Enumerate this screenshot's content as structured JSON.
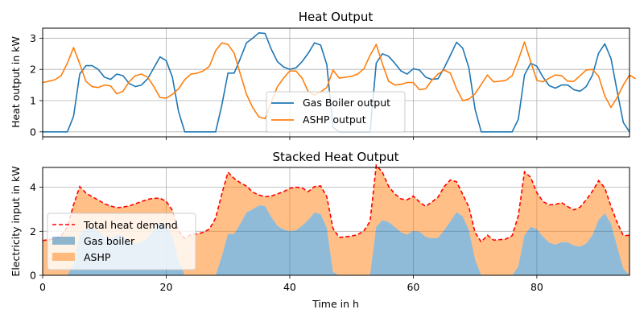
{
  "chart_data": [
    {
      "type": "line",
      "title": "Heat Output",
      "xlabel": "",
      "ylabel": "Heat output in kW",
      "xlim": [
        0,
        95
      ],
      "ylim": [
        -0.16,
        3.32
      ],
      "yticks": [
        0,
        1,
        2,
        3
      ],
      "xticks": [
        0,
        20,
        40,
        60,
        80
      ],
      "show_x_tick_labels": false,
      "grid": true,
      "legend_position": "lower-center",
      "series": [
        {
          "name": "Gas Boiler output",
          "color": "#1f77b4",
          "values": [
            0,
            0,
            0,
            0,
            0,
            0.5,
            1.85,
            2.12,
            2.12,
            2.0,
            1.75,
            1.68,
            1.85,
            1.8,
            1.55,
            1.45,
            1.5,
            1.7,
            2.05,
            2.4,
            2.28,
            1.75,
            0.65,
            0,
            0,
            0,
            0,
            0,
            0,
            0.85,
            1.88,
            1.88,
            2.35,
            2.85,
            3.0,
            3.17,
            3.15,
            2.65,
            2.25,
            2.08,
            2.0,
            2.05,
            2.25,
            2.52,
            2.85,
            2.78,
            2.15,
            0.15,
            0,
            0,
            0,
            0,
            0,
            0,
            2.2,
            2.5,
            2.42,
            2.2,
            1.95,
            1.85,
            2.02,
            1.98,
            1.75,
            1.68,
            1.7,
            2.05,
            2.45,
            2.87,
            2.68,
            2.05,
            0.72,
            0,
            0,
            0,
            0,
            0,
            0,
            0.4,
            1.82,
            2.2,
            2.1,
            1.75,
            1.48,
            1.4,
            1.5,
            1.5,
            1.35,
            1.3,
            1.45,
            1.82,
            2.52,
            2.82,
            2.35,
            1.3,
            0.3,
            0
          ]
        },
        {
          "name": "ASHP output",
          "color": "#ff7f0e",
          "values": [
            1.58,
            1.62,
            1.67,
            1.8,
            2.2,
            2.7,
            2.18,
            1.62,
            1.45,
            1.42,
            1.5,
            1.47,
            1.22,
            1.3,
            1.6,
            1.8,
            1.85,
            1.75,
            1.45,
            1.1,
            1.08,
            1.2,
            1.38,
            1.67,
            1.85,
            1.88,
            1.95,
            2.1,
            2.6,
            2.85,
            2.8,
            2.52,
            1.85,
            1.2,
            0.78,
            0.48,
            0.42,
            0.95,
            1.45,
            1.72,
            1.95,
            1.95,
            1.72,
            1.28,
            1.18,
            1.28,
            1.42,
            1.98,
            1.72,
            1.75,
            1.78,
            1.85,
            2.02,
            2.45,
            2.8,
            2.18,
            1.62,
            1.5,
            1.52,
            1.58,
            1.58,
            1.35,
            1.38,
            1.65,
            1.85,
            1.98,
            1.88,
            1.38,
            1.0,
            1.05,
            1.22,
            1.52,
            1.82,
            1.6,
            1.62,
            1.65,
            1.8,
            2.3,
            2.88,
            2.25,
            1.65,
            1.6,
            1.72,
            1.82,
            1.8,
            1.62,
            1.62,
            1.8,
            1.98,
            2.0,
            1.78,
            1.15,
            0.78,
            1.1,
            1.5,
            1.82,
            1.7
          ]
        }
      ]
    },
    {
      "type": "area",
      "title": "Stacked Heat Output",
      "xlabel": "Time in h",
      "ylabel": "Electricity input in kW",
      "xlim": [
        0,
        95
      ],
      "ylim": [
        0,
        4.9
      ],
      "yticks": [
        0,
        2,
        4
      ],
      "xticks": [
        0,
        20,
        40,
        60,
        80
      ],
      "grid": true,
      "legend_position": "lower-left",
      "stacked": true,
      "series": [
        {
          "name": "Total heat demand",
          "kind": "dashed-line",
          "color": "#ff0000"
        },
        {
          "name": "Gas boiler",
          "kind": "area",
          "color": "#1f77b4",
          "alpha": 0.5,
          "values_from": "chart_data.0.series.0.values"
        },
        {
          "name": "ASHP",
          "kind": "area",
          "color": "#ff7f0e",
          "alpha": 0.5,
          "values_from": "chart_data.0.series.1.values"
        }
      ]
    }
  ]
}
